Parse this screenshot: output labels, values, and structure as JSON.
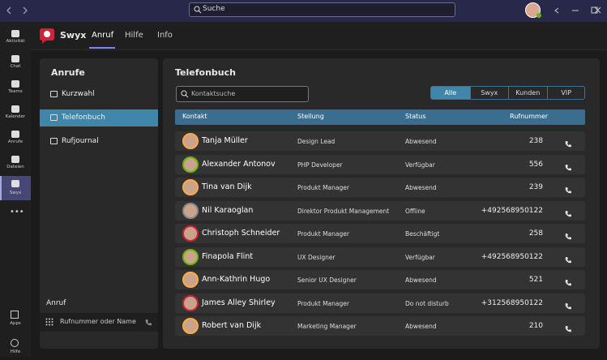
{
  "title_bar": {
    "search_placeholder": "Suche"
  },
  "rail": {
    "items": [
      "Aktivität",
      "Chat",
      "Teams",
      "Kalender",
      "Anrufe",
      "Dateien",
      "Swyx"
    ],
    "bottom_items": [
      "Apps",
      "Hilfe"
    ]
  },
  "app": {
    "name": "Swyx",
    "tabs": [
      "Anruf",
      "Hilfe",
      "Info"
    ]
  },
  "sidebar": {
    "title": "Anrufe",
    "items": [
      "Kurzwahl",
      "Telefonbuch",
      "Rufjournal"
    ],
    "call_label": "Anruf",
    "call_placeholder": "Rufnummer oder Name"
  },
  "phonebook": {
    "title": "Telefonbuch",
    "search_placeholder": "Kontaktsuche",
    "filters": [
      "Alle",
      "Swyx",
      "Kunden",
      "VIP"
    ],
    "columns": [
      "Kontakt",
      "Stellung",
      "Status",
      "Rufnummer"
    ],
    "rows": [
      [
        "Tanja Müller",
        "Design Lead",
        "Abwesend",
        "238"
      ],
      [
        "Alexander Antonov",
        "PHP Developer",
        "Verfügbar",
        "556"
      ],
      [
        "Tina van Dijk",
        "Produkt Manager",
        "Abwesend",
        "239"
      ],
      [
        "Nil Karaoglan",
        "Direktor Produkt Management",
        "Offline",
        "+492568950122"
      ],
      [
        "Christoph Schneider",
        "Produkt Manager",
        "Beschäftigt",
        "258"
      ],
      [
        "Finapola Flint",
        "UX Designer",
        "Verfügbar",
        "+492568950122"
      ],
      [
        "Ann-Kathrin Hugo",
        "Senior UX Designer",
        "Abwesend",
        "521"
      ],
      [
        "James Alley Shirley",
        "Produkt Manager",
        "Do not disturb",
        "+312568950122"
      ],
      [
        "Robert van Dijk",
        "Marketing Manager",
        "Abwesend",
        "210"
      ]
    ]
  }
}
